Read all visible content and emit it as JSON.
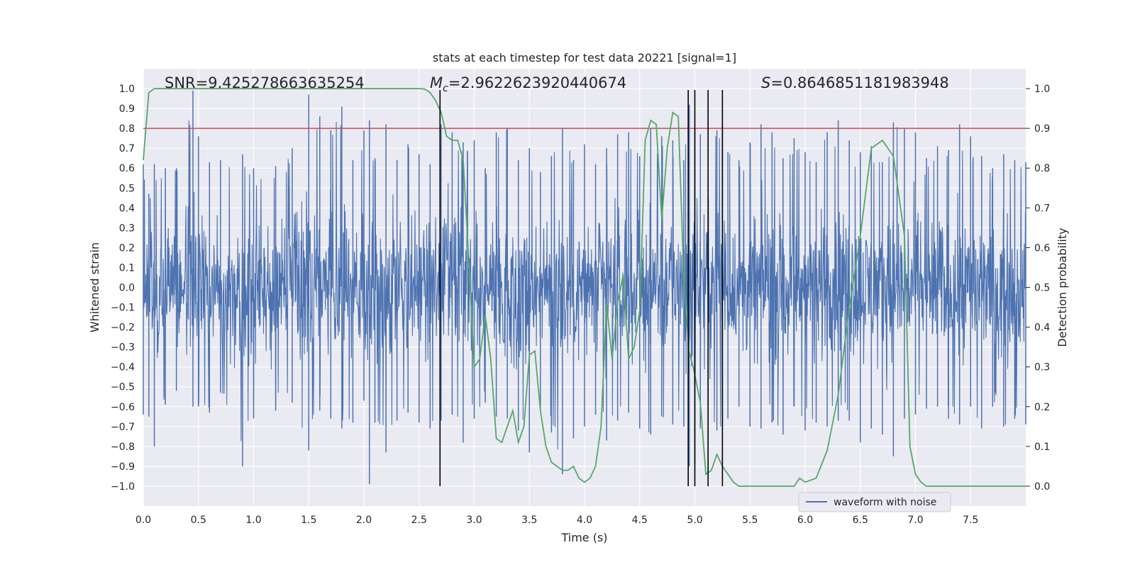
{
  "chart_data": {
    "type": "line",
    "title": "stats at each timestep for test data 20221 [signal=1]",
    "xlabel": "Time (s)",
    "ylabel": "Whitened strain",
    "y2label": "Detection probability",
    "xlim": [
      0.0,
      8.0
    ],
    "ylim": [
      -1.1,
      1.1
    ],
    "y2lim": [
      -0.05,
      1.05
    ],
    "xticks": [
      "0.0",
      "0.5",
      "1.0",
      "1.5",
      "2.0",
      "2.5",
      "3.0",
      "3.5",
      "4.0",
      "4.5",
      "5.0",
      "5.5",
      "6.0",
      "6.5",
      "7.0",
      "7.5"
    ],
    "yticks": [
      "1.0",
      "0.9",
      "0.8",
      "0.7",
      "0.6",
      "0.5",
      "0.4",
      "0.3",
      "0.2",
      "0.1",
      "0.0",
      "-0.1",
      "-0.2",
      "-0.3",
      "-0.4",
      "-0.5",
      "-0.6",
      "-0.7",
      "-0.8",
      "-0.9",
      "-1.0"
    ],
    "y2ticks": [
      "1.0",
      "0.9",
      "0.8",
      "0.7",
      "0.6",
      "0.5",
      "0.4",
      "0.3",
      "0.2",
      "0.1",
      "0.0"
    ],
    "grid": true,
    "legend_position": "lower right",
    "annotations": {
      "snr": "SNR=9.425278663635254",
      "mc_symbol": "M",
      "mc_sub": "c",
      "mc_value": "=2.9622623920440674",
      "s_symbol": "S",
      "s_value": "=0.8646851181983948"
    },
    "threshold": {
      "axis": "y2",
      "value": 0.9,
      "color": "#c44e52"
    },
    "vertical_lines": {
      "x": [
        2.69,
        4.94,
        5.0,
        5.12,
        5.25
      ],
      "y_range": [
        -1.0,
        1.0
      ],
      "color": "#000000"
    },
    "series": [
      {
        "name": "waveform with noise",
        "axis": "y",
        "color": "#4c72b0",
        "style": "dense noisy strain",
        "peaks": [
          [
            0.0,
            0.62,
            -0.64
          ],
          [
            0.05,
            0.47,
            -0.65
          ],
          [
            0.1,
            0.62,
            -0.8
          ],
          [
            0.2,
            0.6,
            -0.59
          ],
          [
            0.3,
            0.6,
            -0.52
          ],
          [
            0.45,
            0.99,
            -0.6
          ],
          [
            0.5,
            0.76,
            -0.6
          ],
          [
            0.6,
            0.63,
            -0.63
          ],
          [
            0.7,
            0.64,
            -0.53
          ],
          [
            0.9,
            0.67,
            -0.9
          ],
          [
            1.0,
            0.6,
            -0.66
          ],
          [
            1.2,
            0.61,
            -0.62
          ],
          [
            1.35,
            0.7,
            -0.58
          ],
          [
            1.5,
            0.97,
            -0.82
          ],
          [
            1.6,
            0.86,
            -0.62
          ],
          [
            1.7,
            0.79,
            -0.66
          ],
          [
            1.8,
            0.91,
            -0.71
          ],
          [
            1.9,
            0.64,
            -0.68
          ],
          [
            2.0,
            0.79,
            -0.57
          ],
          [
            2.05,
            0.84,
            -0.99
          ],
          [
            2.1,
            0.65,
            -0.68
          ],
          [
            2.2,
            0.82,
            -0.83
          ],
          [
            2.3,
            0.64,
            -0.67
          ],
          [
            2.4,
            0.72,
            -0.63
          ],
          [
            2.5,
            0.67,
            -0.68
          ],
          [
            2.6,
            0.62,
            -0.71
          ],
          [
            2.7,
            0.82,
            -0.67
          ],
          [
            2.8,
            0.78,
            -0.64
          ],
          [
            2.9,
            0.73,
            -0.78
          ],
          [
            3.0,
            0.74,
            -0.66
          ],
          [
            3.1,
            0.6,
            -0.58
          ],
          [
            3.2,
            0.78,
            -0.65
          ],
          [
            3.3,
            0.8,
            -0.66
          ],
          [
            3.4,
            0.64,
            -0.72
          ],
          [
            3.5,
            0.7,
            -0.83
          ],
          [
            3.6,
            0.58,
            -0.62
          ],
          [
            3.7,
            0.66,
            -0.73
          ],
          [
            3.8,
            0.8,
            -0.94
          ],
          [
            3.9,
            0.64,
            -0.76
          ],
          [
            4.0,
            0.72,
            -0.7
          ],
          [
            4.1,
            0.62,
            -0.64
          ],
          [
            4.2,
            0.7,
            -0.77
          ],
          [
            4.3,
            0.77,
            -0.67
          ],
          [
            4.4,
            0.78,
            -0.63
          ],
          [
            4.5,
            0.66,
            -0.71
          ],
          [
            4.6,
            0.8,
            -0.74
          ],
          [
            4.7,
            0.76,
            -0.65
          ],
          [
            4.8,
            0.74,
            -0.69
          ],
          [
            4.9,
            0.64,
            -0.7
          ],
          [
            4.95,
            0.92,
            -0.9
          ],
          [
            5.0,
            0.8,
            -0.89
          ],
          [
            5.05,
            0.77,
            -0.71
          ],
          [
            5.2,
            0.79,
            -0.72
          ],
          [
            5.25,
            0.81,
            -0.7
          ],
          [
            5.3,
            0.68,
            -0.66
          ],
          [
            5.4,
            0.64,
            -0.6
          ],
          [
            5.5,
            0.73,
            -0.7
          ],
          [
            5.6,
            0.82,
            -0.71
          ],
          [
            5.7,
            0.78,
            -0.68
          ],
          [
            5.8,
            0.65,
            -0.74
          ],
          [
            5.9,
            0.75,
            -0.6
          ],
          [
            6.0,
            0.68,
            -0.72
          ],
          [
            6.1,
            0.63,
            -0.68
          ],
          [
            6.2,
            0.78,
            -0.7
          ],
          [
            6.3,
            0.84,
            -0.67
          ],
          [
            6.4,
            0.74,
            -0.67
          ],
          [
            6.5,
            0.68,
            -0.78
          ],
          [
            6.6,
            0.71,
            -0.71
          ],
          [
            6.7,
            0.63,
            -0.74
          ],
          [
            6.8,
            0.83,
            -0.85
          ],
          [
            6.9,
            0.8,
            -0.66
          ],
          [
            7.0,
            0.78,
            -0.64
          ],
          [
            7.1,
            0.65,
            -0.61
          ],
          [
            7.2,
            0.71,
            -0.6
          ],
          [
            7.3,
            0.69,
            -0.66
          ],
          [
            7.4,
            0.82,
            -0.69
          ],
          [
            7.5,
            0.76,
            -0.6
          ],
          [
            7.6,
            0.66,
            -0.71
          ],
          [
            7.7,
            0.6,
            -0.6
          ],
          [
            7.8,
            0.67,
            -0.7
          ],
          [
            7.9,
            0.64,
            -0.66
          ],
          [
            8.0,
            0.63,
            -0.69
          ]
        ]
      },
      {
        "axis": "y2",
        "color": "#55a868",
        "x": [
          0.0,
          0.05,
          0.1,
          0.2,
          0.3,
          0.5,
          1.0,
          1.5,
          2.0,
          2.3,
          2.5,
          2.55,
          2.6,
          2.65,
          2.7,
          2.75,
          2.8,
          2.85,
          2.9,
          2.95,
          3.0,
          3.05,
          3.1,
          3.15,
          3.2,
          3.25,
          3.3,
          3.35,
          3.4,
          3.45,
          3.5,
          3.55,
          3.6,
          3.65,
          3.7,
          3.75,
          3.8,
          3.85,
          3.9,
          3.95,
          4.0,
          4.05,
          4.1,
          4.15,
          4.2,
          4.25,
          4.3,
          4.35,
          4.4,
          4.45,
          4.5,
          4.55,
          4.6,
          4.65,
          4.7,
          4.75,
          4.8,
          4.85,
          4.9,
          4.95,
          5.0,
          5.05,
          5.1,
          5.15,
          5.2,
          5.25,
          5.3,
          5.35,
          5.4,
          5.45,
          5.5,
          5.55,
          5.6,
          5.65,
          5.7,
          5.75,
          5.8,
          5.85,
          5.9,
          5.95,
          6.0,
          6.1,
          6.2,
          6.3,
          6.4,
          6.5,
          6.6,
          6.7,
          6.8,
          6.9,
          6.95,
          7.0,
          7.05,
          7.1,
          7.15,
          7.2,
          7.25,
          7.3,
          7.35,
          7.4,
          7.45,
          7.5,
          7.55,
          7.6,
          7.65,
          7.7,
          7.75,
          7.8,
          7.85,
          7.9,
          7.95,
          8.0
        ],
        "y": [
          0.82,
          0.99,
          1.0,
          1.0,
          1.0,
          1.0,
          1.0,
          1.0,
          1.0,
          1.0,
          1.0,
          0.999,
          0.99,
          0.97,
          0.94,
          0.88,
          0.87,
          0.87,
          0.82,
          0.57,
          0.3,
          0.32,
          0.43,
          0.32,
          0.12,
          0.11,
          0.15,
          0.19,
          0.11,
          0.15,
          0.33,
          0.34,
          0.19,
          0.1,
          0.06,
          0.05,
          0.04,
          0.04,
          0.05,
          0.02,
          0.01,
          0.02,
          0.05,
          0.15,
          0.46,
          0.32,
          0.46,
          0.53,
          0.32,
          0.35,
          0.44,
          0.87,
          0.92,
          0.91,
          0.67,
          0.85,
          0.94,
          0.93,
          0.52,
          0.34,
          0.28,
          0.21,
          0.03,
          0.04,
          0.08,
          0.05,
          0.03,
          0.01,
          0.0,
          0.0,
          0.0,
          0.0,
          0.0,
          0.0,
          0.0,
          0.0,
          0.0,
          0.0,
          0.0,
          0.02,
          0.01,
          0.02,
          0.09,
          0.23,
          0.45,
          0.63,
          0.85,
          0.87,
          0.83,
          0.63,
          0.1,
          0.03,
          0.01,
          0.0,
          0.0,
          0.0,
          0.0,
          0.0,
          0.0,
          0.0,
          0.0,
          0.0,
          0.0,
          0.0,
          0.0,
          0.0,
          0.0,
          0.0,
          0.0,
          0.0,
          0.0,
          0.0
        ]
      }
    ]
  }
}
